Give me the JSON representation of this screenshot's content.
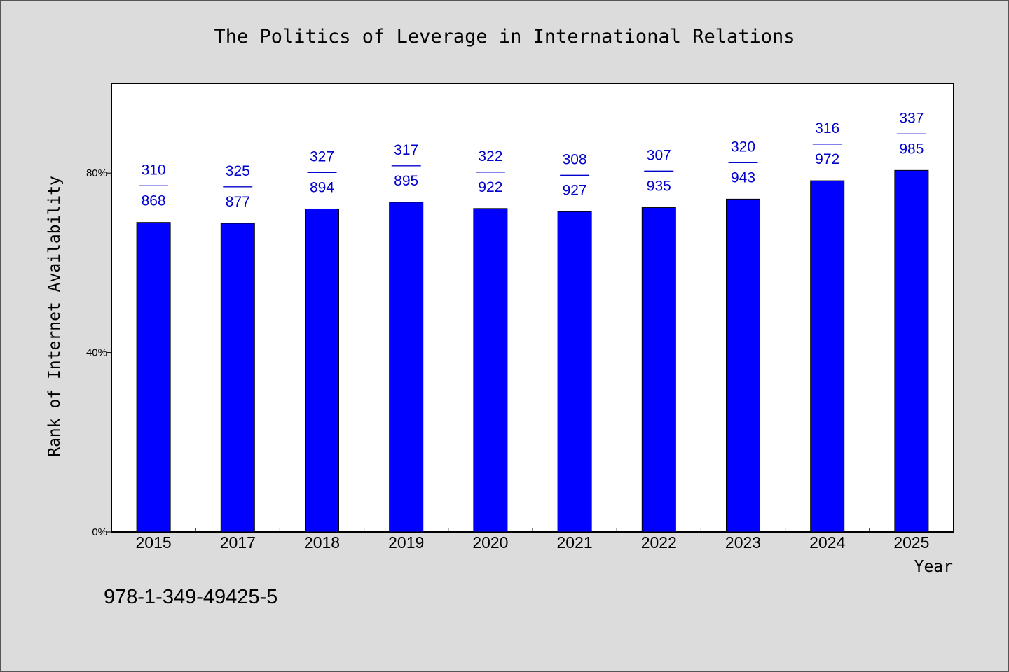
{
  "colors": {
    "background": "#dcdcdc",
    "plot_background": "#ffffff",
    "bar": "#0000ff",
    "bar_stroke": "#000000",
    "data_label": "#0000cc"
  },
  "footer": {
    "isbn": "978-1-349-49425-5"
  },
  "chart_data": {
    "type": "bar",
    "title": "The Politics of Leverage in International Relations",
    "xlabel": "Year",
    "ylabel": "Rank of Internet Availability",
    "categories": [
      "2015",
      "2017",
      "2018",
      "2019",
      "2020",
      "2021",
      "2022",
      "2023",
      "2024",
      "2025"
    ],
    "values": [
      69,
      68.8,
      72,
      73.5,
      72.1,
      71.4,
      72.3,
      74.2,
      78.3,
      80.6
    ],
    "label_top": [
      "310",
      "325",
      "327",
      "317",
      "322",
      "308",
      "307",
      "320",
      "316",
      "337"
    ],
    "label_sep": "——",
    "label_bottom": [
      "868",
      "877",
      "894",
      "895",
      "922",
      "927",
      "935",
      "943",
      "972",
      "985"
    ],
    "yticks": [
      0,
      40,
      80
    ],
    "ytick_labels": [
      "0%",
      "40%",
      "80%"
    ],
    "ylim": [
      0,
      100
    ],
    "grid": false
  }
}
